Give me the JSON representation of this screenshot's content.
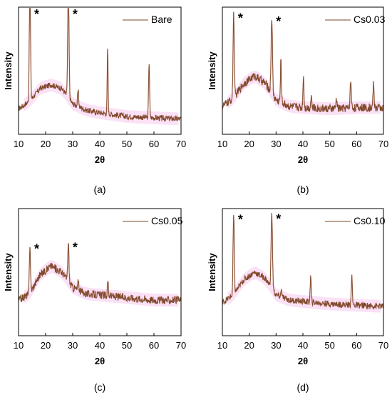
{
  "colors": {
    "trace": "#7a4a2a",
    "noise": "#c0392b",
    "haze": "#f6c9ef",
    "frame": "#000000"
  },
  "chart_data": [
    {
      "type": "line",
      "caption": "(a)",
      "legend": "Bare",
      "xlabel": "2θ",
      "ylabel": "Intensity",
      "xlim": [
        10,
        70
      ],
      "xticks": [
        "10",
        "20",
        "30",
        "40",
        "50",
        "60",
        "70"
      ],
      "y_ticks_shown": false,
      "peak_marker": "*",
      "marked_peaks": [
        14.2,
        28.4
      ],
      "y_unit": "relative intensity (0 = frame bottom, 1 = frame top)",
      "baseline": [
        [
          10,
          0.2
        ],
        [
          14,
          0.26
        ],
        [
          18,
          0.36
        ],
        [
          22,
          0.39
        ],
        [
          26,
          0.36
        ],
        [
          30,
          0.24
        ],
        [
          35,
          0.19
        ],
        [
          40,
          0.17
        ],
        [
          50,
          0.14
        ],
        [
          60,
          0.13
        ],
        [
          70,
          0.12
        ]
      ],
      "peaks": [
        {
          "x": 14.2,
          "height": 0.94,
          "width": 0.22
        },
        {
          "x": 28.4,
          "height": 0.88,
          "width": 0.24
        },
        {
          "x": 32.0,
          "height": 0.12,
          "width": 0.2
        },
        {
          "x": 42.9,
          "height": 0.52,
          "width": 0.15
        },
        {
          "x": 58.2,
          "height": 0.44,
          "width": 0.18
        }
      ],
      "noise": 0.022
    },
    {
      "type": "line",
      "caption": "(b)",
      "legend": "Cs0.03",
      "xlabel": "2θ",
      "ylabel": "Intensity",
      "xlim": [
        10,
        70
      ],
      "xticks": [
        "10",
        "20",
        "30",
        "40",
        "50",
        "60",
        "70"
      ],
      "y_ticks_shown": false,
      "peak_marker": "*",
      "marked_peaks": [
        14.2,
        28.4
      ],
      "y_unit": "relative intensity (0 = frame bottom, 1 = frame top)",
      "baseline": [
        [
          10,
          0.22
        ],
        [
          14,
          0.28
        ],
        [
          18,
          0.4
        ],
        [
          22,
          0.46
        ],
        [
          26,
          0.4
        ],
        [
          30,
          0.27
        ],
        [
          35,
          0.22
        ],
        [
          40,
          0.21
        ],
        [
          50,
          0.2
        ],
        [
          60,
          0.21
        ],
        [
          70,
          0.21
        ]
      ],
      "peaks": [
        {
          "x": 14.2,
          "height": 0.66,
          "width": 0.22
        },
        {
          "x": 28.4,
          "height": 0.6,
          "width": 0.25
        },
        {
          "x": 31.8,
          "height": 0.33,
          "width": 0.18
        },
        {
          "x": 40.2,
          "height": 0.25,
          "width": 0.18
        },
        {
          "x": 43.1,
          "height": 0.1,
          "width": 0.18
        },
        {
          "x": 52.5,
          "height": 0.08,
          "width": 0.2
        },
        {
          "x": 57.8,
          "height": 0.22,
          "width": 0.2
        },
        {
          "x": 66.3,
          "height": 0.18,
          "width": 0.2
        }
      ],
      "noise": 0.032
    },
    {
      "type": "line",
      "caption": "(c)",
      "legend": "Cs0.05",
      "xlabel": "2θ",
      "ylabel": "Intensity",
      "xlim": [
        10,
        70
      ],
      "xticks": [
        "10",
        "20",
        "30",
        "40",
        "50",
        "60",
        "70"
      ],
      "y_ticks_shown": false,
      "peak_marker": "*",
      "marked_peaks": [
        14.2,
        28.4
      ],
      "y_unit": "relative intensity (0 = frame bottom, 1 = frame top)",
      "baseline": [
        [
          10,
          0.28
        ],
        [
          14,
          0.33
        ],
        [
          18,
          0.48
        ],
        [
          22,
          0.55
        ],
        [
          26,
          0.5
        ],
        [
          30,
          0.38
        ],
        [
          35,
          0.33
        ],
        [
          40,
          0.32
        ],
        [
          50,
          0.3
        ],
        [
          60,
          0.28
        ],
        [
          70,
          0.28
        ]
      ],
      "peaks": [
        {
          "x": 14.2,
          "height": 0.38,
          "width": 0.2
        },
        {
          "x": 28.4,
          "height": 0.3,
          "width": 0.22
        },
        {
          "x": 32.1,
          "height": 0.08,
          "width": 0.18
        },
        {
          "x": 43.0,
          "height": 0.12,
          "width": 0.18
        }
      ],
      "noise": 0.03
    },
    {
      "type": "line",
      "caption": "(d)",
      "legend": "Cs0.10",
      "xlabel": "2θ",
      "ylabel": "Intensity",
      "xlim": [
        10,
        70
      ],
      "xticks": [
        "10",
        "20",
        "30",
        "40",
        "50",
        "60",
        "70"
      ],
      "y_ticks_shown": false,
      "peak_marker": "*",
      "marked_peaks": [
        14.2,
        28.4
      ],
      "y_unit": "relative intensity (0 = frame bottom, 1 = frame top)",
      "baseline": [
        [
          10,
          0.26
        ],
        [
          14,
          0.32
        ],
        [
          18,
          0.44
        ],
        [
          22,
          0.5
        ],
        [
          26,
          0.45
        ],
        [
          30,
          0.32
        ],
        [
          35,
          0.28
        ],
        [
          40,
          0.27
        ],
        [
          50,
          0.25
        ],
        [
          60,
          0.24
        ],
        [
          70,
          0.23
        ]
      ],
      "peaks": [
        {
          "x": 14.2,
          "height": 0.62,
          "width": 0.22
        },
        {
          "x": 28.4,
          "height": 0.58,
          "width": 0.26
        },
        {
          "x": 32.0,
          "height": 0.06,
          "width": 0.18
        },
        {
          "x": 42.9,
          "height": 0.2,
          "width": 0.18
        },
        {
          "x": 58.2,
          "height": 0.22,
          "width": 0.2
        }
      ],
      "noise": 0.024
    }
  ]
}
